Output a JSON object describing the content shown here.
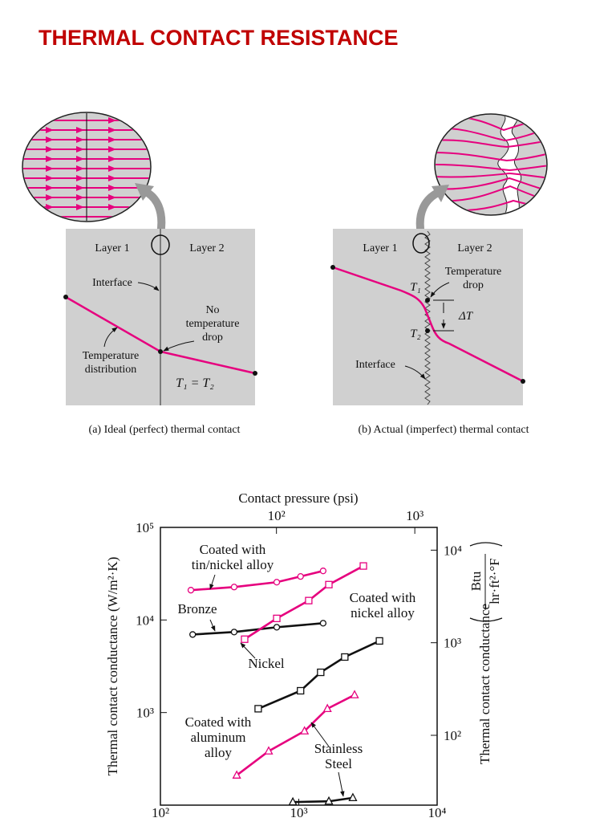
{
  "header": {
    "title": "THERMAL CONTACT RESISTANCE"
  },
  "diagrams": [
    {
      "layer1": "Layer 1",
      "layer2": "Layer 2",
      "interface": "Interface",
      "no_temperature_drop": [
        "No",
        "temperature",
        "drop"
      ],
      "temperature_distribution": [
        "Temperature",
        "distribution"
      ],
      "equality": "T₁ = T₂",
      "caption": "(a) Ideal (perfect) thermal contact"
    },
    {
      "layer1": "Layer 1",
      "layer2": "Layer 2",
      "temperature_drop": [
        "Temperature",
        "drop"
      ],
      "t1": "T₁",
      "delta_t": "ΔT",
      "t2": "T₂",
      "interface": "Interface",
      "caption": "(b) Actual (imperfect) thermal contact"
    }
  ],
  "chart_data": {
    "type": "line",
    "x2label": "Contact pressure (psi)",
    "ylabel": "Thermal contact conductance (W/m²·K)",
    "y2label": {
      "text": "Thermal contact conductance",
      "unit_numerator": "Btu",
      "unit_denominator": "hr·ft²·°F"
    },
    "xscale": "log",
    "yscale": "log",
    "xlim": [
      100,
      10000
    ],
    "xticks": [
      {
        "value": 100,
        "label": "10²"
      },
      {
        "value": 1000,
        "label": "10³"
      },
      {
        "value": 10000,
        "label": "10⁴"
      }
    ],
    "ylim": [
      100,
      100000
    ],
    "yticks": [
      {
        "value": 1000,
        "label": "10³"
      },
      {
        "value": 10000,
        "label": "10⁴"
      },
      {
        "value": 100000,
        "label": "10⁵"
      }
    ],
    "x2lim": [
      14.5,
      1450
    ],
    "x2ticks": [
      {
        "value": 100,
        "label": "10²"
      },
      {
        "value": 1000,
        "label": "10³"
      }
    ],
    "y2lim": [
      17.6,
      17612
    ],
    "y2ticks": [
      {
        "value": 100,
        "label": "10²"
      },
      {
        "value": 1000,
        "label": "10³"
      },
      {
        "value": 10000,
        "label": "10⁴"
      }
    ],
    "series": [
      {
        "name": "Coated with\ntin/nickel alloy",
        "color": "#e6007e",
        "marker": "circle",
        "x": [
          166,
          341,
          693,
          1030,
          1500
        ],
        "values": [
          21000,
          22700,
          25600,
          29500,
          33900
        ]
      },
      {
        "name": "Bronze",
        "color": "#111111",
        "marker": "circle",
        "x": [
          171,
          341,
          693,
          1500
        ],
        "values": [
          6970,
          7410,
          8350,
          9230
        ]
      },
      {
        "name": "Coated with\nnickel alloy",
        "color": "#e6007e",
        "marker": "square",
        "x": [
          406,
          693,
          1180,
          1650,
          2930
        ],
        "values": [
          6200,
          10400,
          16200,
          24100,
          38300
        ]
      },
      {
        "name": "Nickel",
        "color": "#111111",
        "marker": "square",
        "x": [
          509,
          1030,
          1440,
          2150,
          3830
        ],
        "values": [
          1100,
          1720,
          2720,
          3980,
          5940
        ]
      },
      {
        "name": "Coated with\naluminum\nalloy",
        "color": "#e6007e",
        "marker": "triangle",
        "x": [
          356,
          606,
          1100,
          1610,
          2530
        ],
        "values": [
          210,
          383,
          631,
          1100,
          1550
        ]
      },
      {
        "name": "Stainless\nSteel",
        "color": "#111111",
        "marker": "triangle",
        "x": [
          906,
          1650,
          2460
        ],
        "values": [
          108,
          110,
          120
        ]
      }
    ]
  }
}
